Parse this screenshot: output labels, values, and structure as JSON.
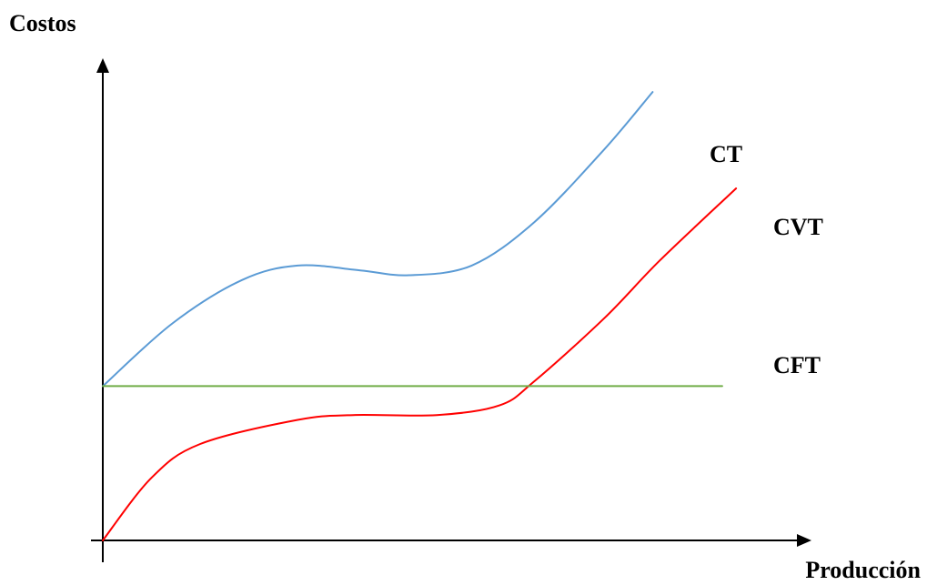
{
  "chart_data": {
    "type": "line",
    "title": "",
    "ylabel": "Costos",
    "xlabel": "Producción",
    "xlim": [
      0,
      100
    ],
    "ylim": [
      0,
      100
    ],
    "grid": false,
    "series": [
      {
        "name": "CT",
        "color": "#5b9bd5",
        "x": [
          0,
          10,
          20,
          28,
          37,
          44,
          53,
          62,
          72,
          79
        ],
        "y": [
          32,
          45,
          54,
          57,
          56,
          55,
          57,
          66,
          81,
          93
        ]
      },
      {
        "name": "CVT",
        "color": "#ff0000",
        "x": [
          0,
          7,
          14,
          28,
          36,
          48,
          57,
          62,
          72,
          80,
          91
        ],
        "y": [
          0,
          13,
          20,
          25,
          26,
          26,
          28,
          33,
          46,
          58,
          73
        ]
      },
      {
        "name": "CFT",
        "color": "#70ad47",
        "x": [
          0,
          89
        ],
        "y": [
          32,
          32
        ]
      }
    ]
  }
}
